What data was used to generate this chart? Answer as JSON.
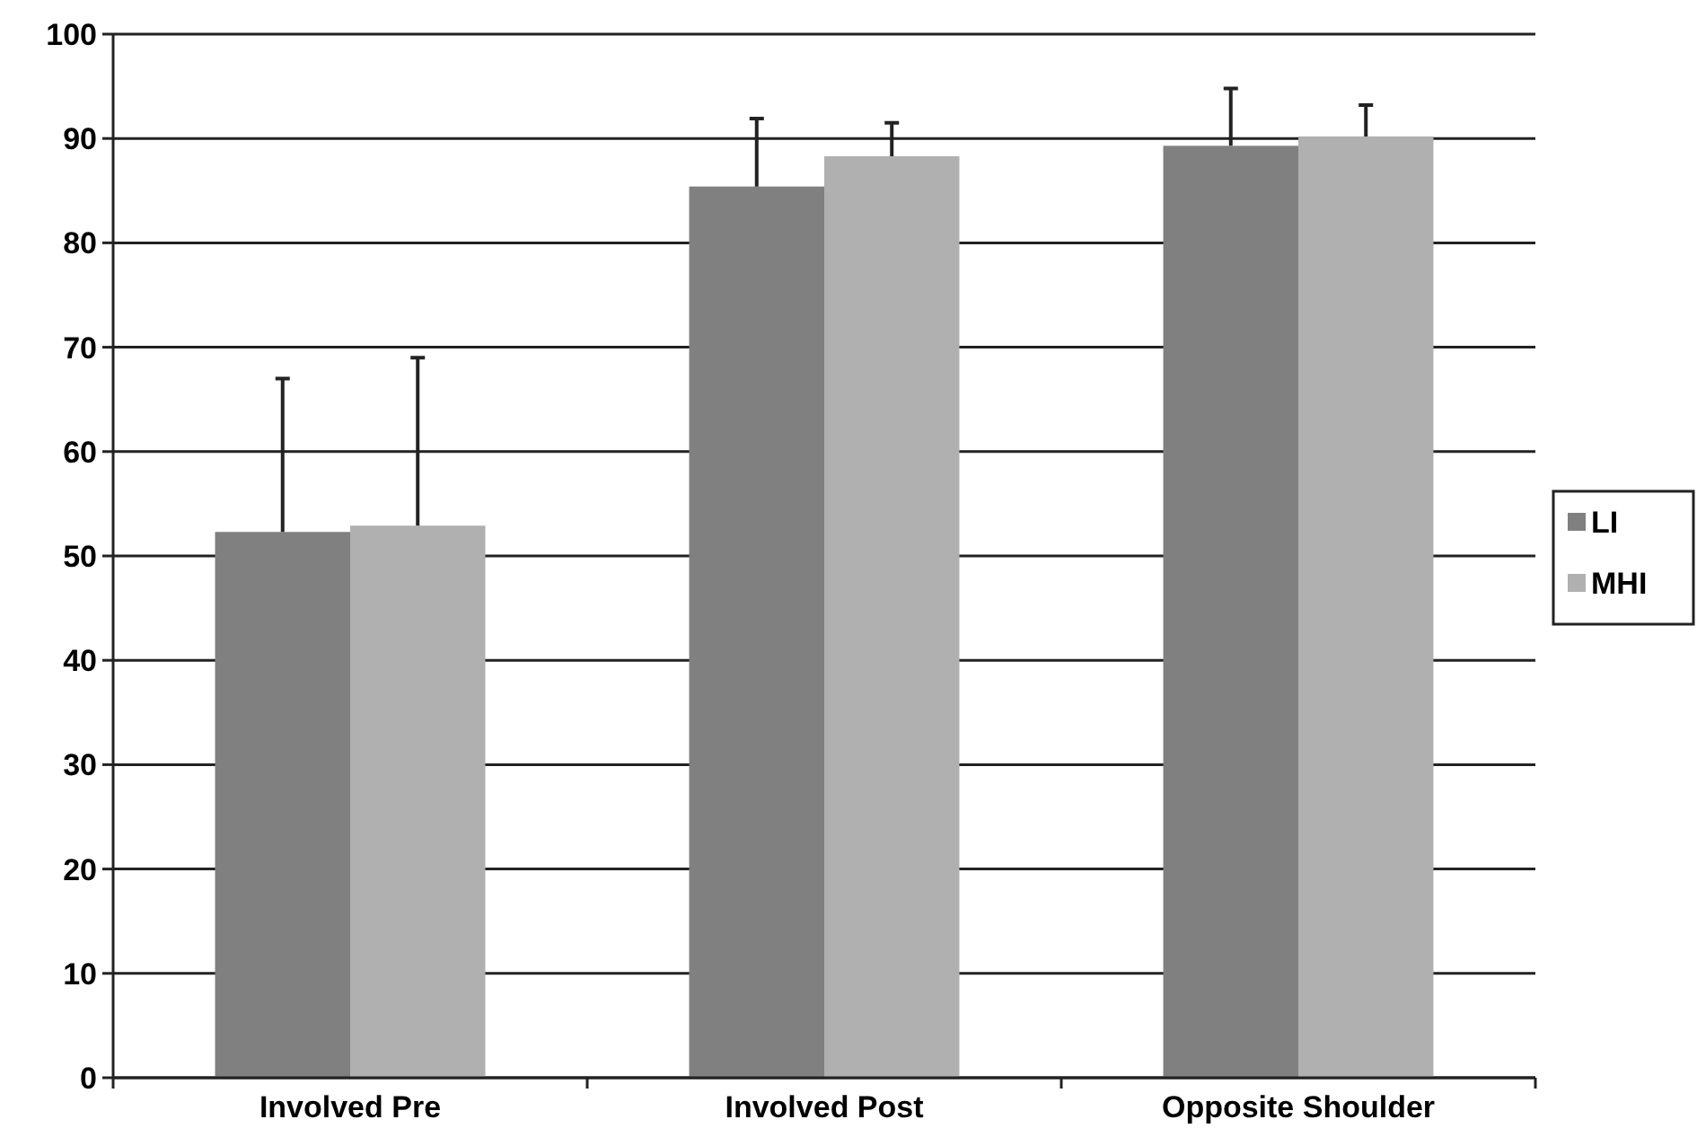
{
  "chart_data": {
    "type": "bar",
    "categories": [
      "Involved Pre",
      "Involved Post",
      "Opposite Shoulder"
    ],
    "series": [
      {
        "name": "LI",
        "color": "#808080",
        "values": [
          52.3,
          85.4,
          89.3
        ],
        "errors": [
          [
            52.3,
            67.0
          ],
          [
            85.4,
            91.9
          ],
          [
            89.3,
            94.8
          ]
        ]
      },
      {
        "name": "MHI",
        "color": "#b0b0b0",
        "values": [
          52.9,
          88.3,
          90.2
        ],
        "errors": [
          [
            52.9,
            69.0
          ],
          [
            88.3,
            91.5
          ],
          [
            90.2,
            93.2
          ]
        ]
      }
    ],
    "ylim": [
      0,
      100
    ],
    "yticks": [
      0,
      10,
      20,
      30,
      40,
      50,
      60,
      70,
      80,
      90,
      100
    ],
    "grid": "y",
    "legend": "right"
  }
}
